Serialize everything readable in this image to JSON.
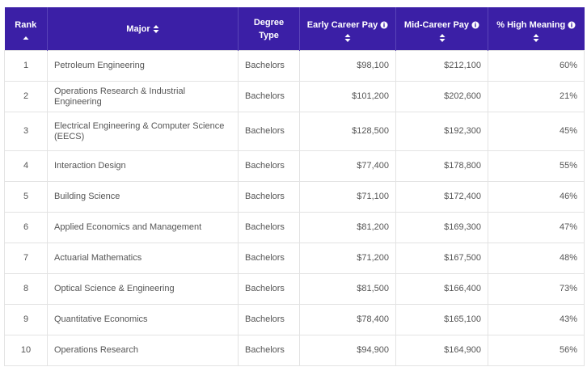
{
  "table": {
    "headers": [
      "Rank",
      "Major",
      "Degree Type",
      "Early Career Pay",
      "Mid-Career Pay",
      "% High Meaning"
    ],
    "rows": [
      [
        "1",
        "Petroleum Engineering",
        "Bachelors",
        "$98,100",
        "$212,100",
        "60%"
      ],
      [
        "2",
        "Operations Research & Industrial Engineering",
        "Bachelors",
        "$101,200",
        "$202,600",
        "21%"
      ],
      [
        "3",
        "Electrical Engineering & Computer Science (EECS)",
        "Bachelors",
        "$128,500",
        "$192,300",
        "45%"
      ],
      [
        "4",
        "Interaction Design",
        "Bachelors",
        "$77,400",
        "$178,800",
        "55%"
      ],
      [
        "5",
        "Building Science",
        "Bachelors",
        "$71,100",
        "$172,400",
        "46%"
      ],
      [
        "6",
        "Applied Economics and Management",
        "Bachelors",
        "$81,200",
        "$169,300",
        "47%"
      ],
      [
        "7",
        "Actuarial Mathematics",
        "Bachelors",
        "$71,200",
        "$167,500",
        "48%"
      ],
      [
        "8",
        "Optical Science & Engineering",
        "Bachelors",
        "$81,500",
        "$166,400",
        "73%"
      ],
      [
        "9",
        "Quantitative Economics",
        "Bachelors",
        "$78,400",
        "$165,100",
        "43%"
      ],
      [
        "10",
        "Operations Research",
        "Bachelors",
        "$94,900",
        "$164,900",
        "56%"
      ]
    ]
  }
}
